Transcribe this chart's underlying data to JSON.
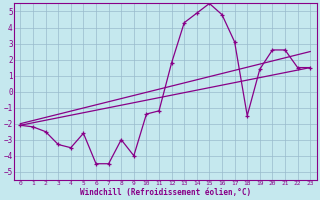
{
  "xlabel": "Windchill (Refroidissement éolien,°C)",
  "xlim": [
    -0.5,
    23.5
  ],
  "ylim": [
    -5.5,
    5.5
  ],
  "yticks": [
    -5,
    -4,
    -3,
    -2,
    -1,
    0,
    1,
    2,
    3,
    4,
    5
  ],
  "xticks": [
    0,
    1,
    2,
    3,
    4,
    5,
    6,
    7,
    8,
    9,
    10,
    11,
    12,
    13,
    14,
    15,
    16,
    17,
    18,
    19,
    20,
    21,
    22,
    23
  ],
  "line_color": "#880088",
  "bg_color": "#c5e8ee",
  "grid_color": "#99bbcc",
  "main_x": [
    0,
    1,
    2,
    3,
    4,
    5,
    6,
    7,
    8,
    9,
    10,
    11,
    12,
    13,
    14,
    15,
    16,
    17,
    18,
    19,
    20,
    21,
    22,
    23
  ],
  "main_y": [
    -2.1,
    -2.2,
    -2.5,
    -3.3,
    -3.5,
    -2.6,
    -4.5,
    -4.5,
    -3.0,
    -4.0,
    -1.4,
    -1.2,
    1.8,
    4.3,
    4.9,
    5.5,
    4.8,
    3.1,
    -1.5,
    1.4,
    2.6,
    2.6,
    1.5,
    1.5
  ],
  "line1_x": [
    0,
    23
  ],
  "line1_y": [
    -2.1,
    1.5
  ],
  "line2_x": [
    0,
    23
  ],
  "line2_y": [
    -2.0,
    2.5
  ]
}
